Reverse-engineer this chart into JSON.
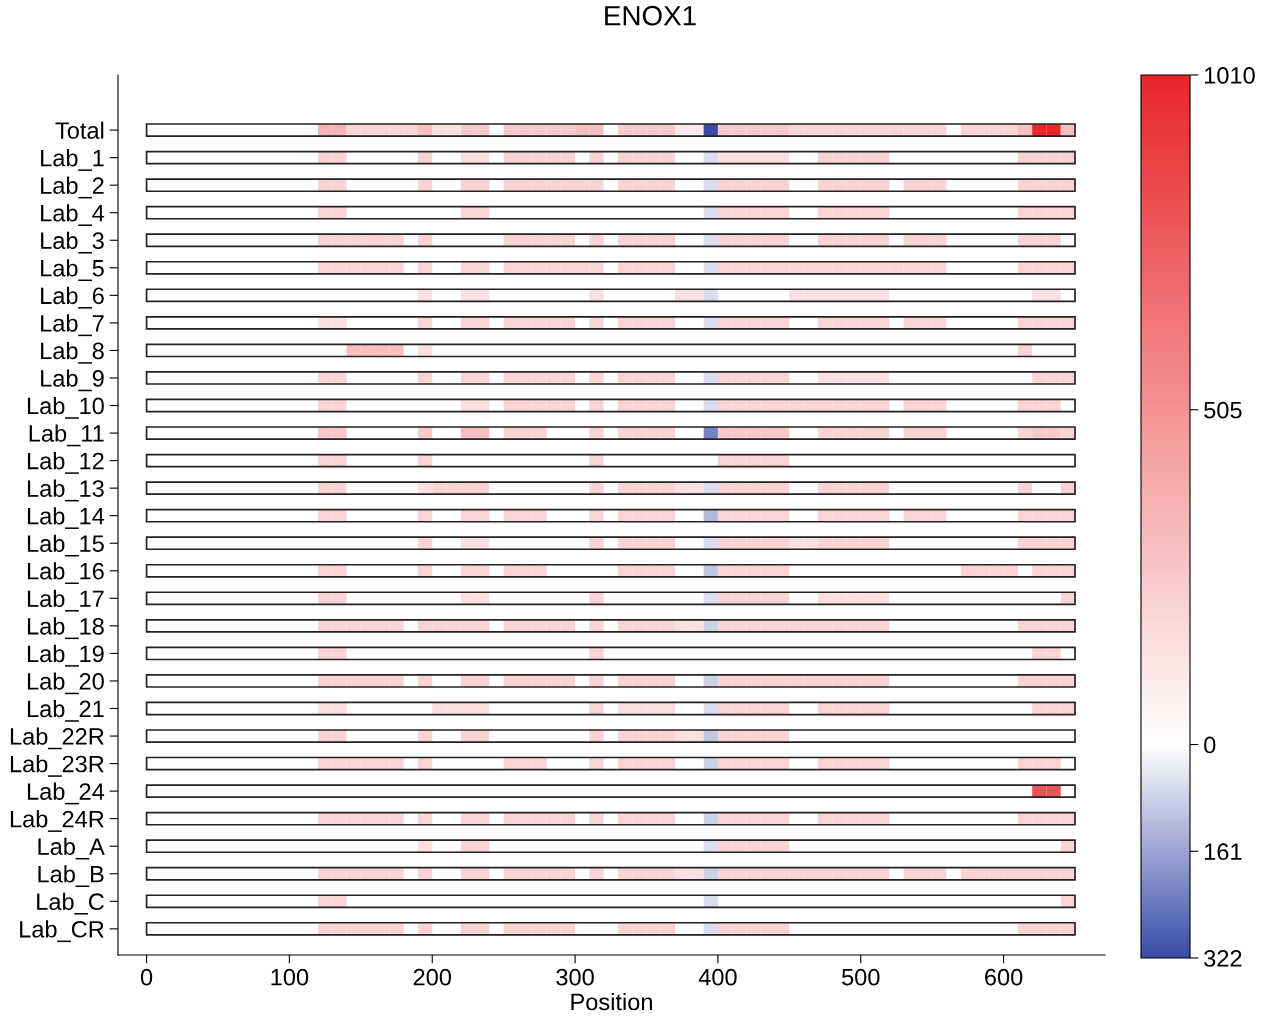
{
  "chart_data": {
    "type": "heatmap",
    "title": "ENOX1",
    "xlabel": "Position",
    "x": [
      125,
      135,
      145,
      155,
      165,
      175,
      185,
      195,
      205,
      215,
      225,
      235,
      245,
      255,
      265,
      275,
      285,
      295,
      305,
      315,
      325,
      335,
      345,
      355,
      365,
      375,
      385,
      395,
      405,
      415,
      425,
      435,
      445,
      455,
      465,
      475,
      485,
      495,
      505,
      515,
      525,
      535,
      545,
      555,
      565,
      575,
      585,
      595,
      605,
      615,
      625,
      635,
      645
    ],
    "xlim": [
      -20,
      671
    ],
    "xticks": [
      0,
      100,
      200,
      300,
      400,
      500,
      600
    ],
    "y_categories": [
      "Total",
      "Lab_1",
      "Lab_2",
      "Lab_4",
      "Lab_3",
      "Lab_5",
      "Lab_6",
      "Lab_7",
      "Lab_8",
      "Lab_9",
      "Lab_10",
      "Lab_11",
      "Lab_12",
      "Lab_13",
      "Lab_14",
      "Lab_15",
      "Lab_16",
      "Lab_17",
      "Lab_18",
      "Lab_19",
      "Lab_20",
      "Lab_21",
      "Lab_22R",
      "Lab_23R",
      "Lab_24",
      "Lab_24R",
      "Lab_A",
      "Lab_B",
      "Lab_C",
      "Lab_CR"
    ],
    "colors": [
      "#3a4ca8",
      "#ffffff",
      "#e8262a"
    ],
    "clim": [
      -322,
      1010
    ],
    "cticks": [
      {
        "value": 1010,
        "label": "1010"
      },
      {
        "value": 505,
        "label": "505"
      },
      {
        "value": 0,
        "label": "0"
      },
      {
        "value": -161,
        "label": "161"
      },
      {
        "value": -322,
        "label": "322"
      }
    ],
    "cells": [
      [
        350,
        350,
        200,
        200,
        200,
        200,
        200,
        300,
        150,
        150,
        250,
        250,
        null,
        250,
        250,
        250,
        250,
        250,
        300,
        300,
        null,
        250,
        250,
        250,
        250,
        100,
        100,
        -322,
        250,
        250,
        250,
        250,
        250,
        200,
        200,
        200,
        200,
        200,
        200,
        200,
        200,
        200,
        200,
        200,
        null,
        200,
        200,
        200,
        200,
        300,
        1000,
        1000,
        300
      ],
      [
        200,
        200,
        null,
        null,
        null,
        null,
        null,
        200,
        null,
        null,
        150,
        150,
        null,
        200,
        200,
        200,
        200,
        200,
        null,
        200,
        null,
        200,
        200,
        200,
        200,
        null,
        null,
        -60,
        150,
        150,
        150,
        150,
        150,
        null,
        null,
        200,
        200,
        200,
        200,
        200,
        null,
        null,
        null,
        null,
        null,
        null,
        null,
        null,
        null,
        200,
        200,
        200,
        200
      ],
      [
        200,
        200,
        null,
        null,
        null,
        null,
        null,
        200,
        null,
        null,
        200,
        200,
        null,
        200,
        200,
        200,
        200,
        200,
        200,
        200,
        null,
        200,
        200,
        200,
        200,
        null,
        null,
        -60,
        200,
        200,
        200,
        200,
        200,
        null,
        null,
        200,
        200,
        200,
        200,
        200,
        null,
        200,
        200,
        200,
        null,
        null,
        null,
        null,
        null,
        200,
        200,
        200,
        200
      ],
      [
        200,
        200,
        null,
        null,
        null,
        null,
        null,
        null,
        null,
        null,
        200,
        200,
        null,
        null,
        null,
        null,
        null,
        null,
        null,
        null,
        null,
        null,
        null,
        null,
        null,
        null,
        null,
        -60,
        200,
        200,
        200,
        200,
        200,
        null,
        null,
        200,
        200,
        200,
        200,
        200,
        null,
        null,
        null,
        null,
        null,
        null,
        null,
        null,
        null,
        200,
        200,
        200,
        200
      ],
      [
        200,
        200,
        200,
        200,
        200,
        200,
        null,
        200,
        null,
        null,
        null,
        null,
        null,
        200,
        200,
        200,
        200,
        200,
        null,
        200,
        null,
        200,
        200,
        200,
        200,
        null,
        null,
        -60,
        200,
        200,
        200,
        200,
        200,
        null,
        null,
        200,
        200,
        200,
        200,
        200,
        null,
        200,
        200,
        200,
        null,
        null,
        null,
        null,
        null,
        200,
        200,
        200,
        null
      ],
      [
        200,
        200,
        200,
        200,
        200,
        200,
        null,
        200,
        null,
        null,
        200,
        200,
        null,
        200,
        200,
        200,
        200,
        200,
        200,
        200,
        null,
        200,
        200,
        200,
        200,
        null,
        null,
        -60,
        200,
        200,
        200,
        200,
        200,
        200,
        200,
        200,
        200,
        200,
        200,
        200,
        200,
        200,
        200,
        200,
        null,
        null,
        null,
        null,
        null,
        200,
        200,
        200,
        200
      ],
      [
        null,
        null,
        null,
        null,
        null,
        null,
        null,
        150,
        null,
        null,
        150,
        150,
        null,
        null,
        null,
        null,
        null,
        null,
        null,
        150,
        null,
        null,
        null,
        null,
        null,
        150,
        150,
        -60,
        null,
        null,
        null,
        null,
        null,
        150,
        150,
        150,
        150,
        150,
        150,
        150,
        null,
        null,
        null,
        null,
        null,
        null,
        null,
        null,
        null,
        null,
        150,
        150,
        null
      ],
      [
        150,
        150,
        null,
        null,
        null,
        null,
        null,
        200,
        null,
        null,
        200,
        200,
        null,
        200,
        200,
        200,
        200,
        200,
        null,
        200,
        null,
        200,
        200,
        200,
        200,
        null,
        null,
        -60,
        200,
        200,
        200,
        200,
        200,
        null,
        null,
        200,
        200,
        200,
        200,
        200,
        null,
        200,
        200,
        200,
        null,
        null,
        null,
        null,
        null,
        200,
        200,
        200,
        200
      ],
      [
        null,
        null,
        300,
        300,
        300,
        300,
        null,
        150,
        null,
        null,
        null,
        null,
        null,
        null,
        null,
        null,
        null,
        null,
        null,
        null,
        null,
        null,
        null,
        null,
        null,
        null,
        null,
        null,
        null,
        null,
        null,
        null,
        null,
        null,
        null,
        null,
        null,
        null,
        null,
        null,
        null,
        null,
        null,
        null,
        null,
        null,
        null,
        null,
        null,
        200,
        null,
        null,
        null
      ],
      [
        200,
        200,
        null,
        null,
        null,
        null,
        null,
        200,
        null,
        null,
        200,
        200,
        null,
        200,
        200,
        200,
        200,
        200,
        null,
        200,
        null,
        200,
        200,
        200,
        200,
        null,
        null,
        -60,
        200,
        200,
        200,
        200,
        200,
        null,
        null,
        150,
        150,
        150,
        150,
        150,
        null,
        null,
        null,
        null,
        null,
        null,
        null,
        null,
        null,
        null,
        200,
        200,
        200
      ],
      [
        200,
        200,
        null,
        null,
        null,
        null,
        null,
        null,
        null,
        null,
        150,
        150,
        null,
        200,
        200,
        200,
        200,
        200,
        null,
        200,
        null,
        200,
        200,
        200,
        200,
        null,
        null,
        -60,
        200,
        200,
        200,
        200,
        200,
        200,
        200,
        200,
        200,
        200,
        200,
        200,
        null,
        200,
        200,
        200,
        null,
        null,
        null,
        null,
        null,
        200,
        200,
        200,
        null
      ],
      [
        250,
        250,
        null,
        null,
        null,
        null,
        null,
        250,
        null,
        null,
        300,
        300,
        null,
        200,
        200,
        200,
        null,
        null,
        null,
        200,
        null,
        200,
        200,
        200,
        200,
        null,
        null,
        -220,
        250,
        250,
        250,
        250,
        250,
        null,
        null,
        200,
        200,
        200,
        200,
        200,
        null,
        200,
        200,
        200,
        null,
        null,
        null,
        null,
        null,
        200,
        250,
        250,
        200
      ],
      [
        200,
        200,
        null,
        null,
        null,
        null,
        null,
        200,
        null,
        null,
        null,
        null,
        null,
        null,
        null,
        null,
        null,
        null,
        null,
        200,
        null,
        null,
        null,
        null,
        null,
        null,
        null,
        null,
        200,
        200,
        200,
        200,
        200,
        null,
        null,
        null,
        null,
        null,
        null,
        null,
        null,
        null,
        null,
        null,
        null,
        null,
        null,
        null,
        null,
        null,
        null,
        null,
        null
      ],
      [
        200,
        200,
        null,
        null,
        null,
        null,
        null,
        150,
        200,
        200,
        200,
        200,
        null,
        null,
        null,
        null,
        null,
        null,
        null,
        200,
        null,
        200,
        200,
        200,
        200,
        150,
        150,
        -60,
        200,
        200,
        200,
        200,
        200,
        null,
        null,
        200,
        200,
        200,
        200,
        200,
        null,
        null,
        null,
        null,
        null,
        null,
        null,
        null,
        null,
        200,
        null,
        null,
        200
      ],
      [
        200,
        200,
        null,
        null,
        null,
        null,
        null,
        200,
        null,
        null,
        200,
        200,
        null,
        200,
        200,
        200,
        null,
        null,
        null,
        200,
        null,
        200,
        200,
        200,
        200,
        null,
        null,
        -120,
        200,
        200,
        200,
        200,
        200,
        null,
        null,
        200,
        200,
        200,
        200,
        200,
        null,
        200,
        200,
        200,
        null,
        null,
        null,
        null,
        null,
        200,
        200,
        200,
        200
      ],
      [
        null,
        null,
        null,
        null,
        null,
        null,
        null,
        200,
        null,
        null,
        150,
        150,
        null,
        null,
        null,
        null,
        null,
        null,
        null,
        200,
        null,
        200,
        200,
        200,
        200,
        null,
        null,
        -60,
        200,
        200,
        200,
        200,
        200,
        150,
        150,
        200,
        200,
        200,
        200,
        200,
        null,
        null,
        null,
        null,
        null,
        null,
        null,
        null,
        null,
        200,
        200,
        200,
        200
      ],
      [
        200,
        200,
        null,
        null,
        null,
        null,
        null,
        200,
        null,
        null,
        200,
        200,
        null,
        200,
        200,
        200,
        null,
        null,
        null,
        null,
        null,
        200,
        200,
        200,
        200,
        null,
        null,
        -100,
        200,
        200,
        200,
        200,
        200,
        null,
        null,
        null,
        null,
        null,
        null,
        null,
        null,
        null,
        null,
        null,
        null,
        200,
        200,
        200,
        200,
        null,
        200,
        200,
        200
      ],
      [
        200,
        200,
        null,
        null,
        null,
        null,
        null,
        null,
        null,
        null,
        150,
        150,
        null,
        null,
        null,
        null,
        null,
        null,
        null,
        200,
        null,
        null,
        null,
        null,
        null,
        null,
        null,
        -60,
        200,
        200,
        200,
        200,
        200,
        null,
        null,
        150,
        150,
        150,
        150,
        150,
        null,
        null,
        null,
        null,
        null,
        null,
        null,
        null,
        null,
        null,
        null,
        null,
        200
      ],
      [
        200,
        200,
        200,
        200,
        200,
        200,
        null,
        200,
        200,
        200,
        200,
        200,
        null,
        200,
        200,
        200,
        200,
        200,
        null,
        200,
        null,
        200,
        200,
        200,
        200,
        150,
        150,
        -80,
        200,
        200,
        200,
        200,
        200,
        200,
        200,
        200,
        200,
        200,
        200,
        200,
        null,
        null,
        null,
        null,
        null,
        null,
        null,
        null,
        null,
        200,
        200,
        200,
        200
      ],
      [
        200,
        200,
        null,
        null,
        null,
        null,
        null,
        null,
        null,
        null,
        null,
        null,
        null,
        null,
        null,
        null,
        null,
        null,
        null,
        200,
        null,
        null,
        null,
        null,
        null,
        null,
        null,
        null,
        null,
        null,
        null,
        null,
        null,
        null,
        null,
        null,
        null,
        null,
        null,
        null,
        null,
        null,
        null,
        null,
        null,
        null,
        null,
        null,
        null,
        null,
        200,
        200,
        null
      ],
      [
        200,
        200,
        200,
        200,
        200,
        200,
        null,
        200,
        null,
        null,
        200,
        200,
        null,
        200,
        200,
        200,
        200,
        200,
        null,
        200,
        null,
        200,
        200,
        200,
        200,
        null,
        null,
        -80,
        200,
        200,
        200,
        200,
        200,
        200,
        200,
        200,
        200,
        200,
        200,
        200,
        null,
        null,
        null,
        null,
        null,
        null,
        null,
        null,
        null,
        200,
        200,
        200,
        200
      ],
      [
        150,
        150,
        null,
        null,
        null,
        null,
        null,
        null,
        150,
        150,
        150,
        150,
        null,
        null,
        null,
        null,
        null,
        null,
        null,
        200,
        null,
        150,
        150,
        150,
        150,
        null,
        null,
        -60,
        200,
        200,
        200,
        200,
        200,
        null,
        null,
        200,
        200,
        200,
        200,
        200,
        null,
        null,
        null,
        null,
        null,
        null,
        null,
        null,
        null,
        null,
        200,
        200,
        200
      ],
      [
        200,
        200,
        null,
        null,
        null,
        null,
        null,
        200,
        null,
        null,
        200,
        200,
        null,
        null,
        null,
        null,
        null,
        null,
        null,
        200,
        null,
        200,
        200,
        200,
        200,
        150,
        150,
        -100,
        200,
        200,
        200,
        200,
        200,
        null,
        null,
        null,
        null,
        null,
        null,
        null,
        null,
        null,
        null,
        null,
        null,
        null,
        null,
        null,
        null,
        null,
        null,
        null,
        null
      ],
      [
        200,
        200,
        200,
        200,
        200,
        200,
        null,
        200,
        null,
        null,
        null,
        null,
        null,
        200,
        200,
        200,
        null,
        null,
        null,
        200,
        null,
        200,
        200,
        200,
        200,
        null,
        null,
        -80,
        200,
        200,
        200,
        200,
        200,
        null,
        null,
        200,
        200,
        200,
        200,
        200,
        null,
        null,
        null,
        null,
        null,
        null,
        null,
        null,
        null,
        200,
        200,
        200,
        null
      ],
      [
        null,
        null,
        null,
        null,
        null,
        null,
        null,
        null,
        null,
        null,
        null,
        null,
        null,
        null,
        null,
        null,
        null,
        null,
        null,
        null,
        null,
        null,
        null,
        null,
        null,
        null,
        null,
        null,
        null,
        null,
        null,
        null,
        null,
        null,
        null,
        null,
        null,
        null,
        null,
        null,
        null,
        null,
        null,
        null,
        null,
        null,
        null,
        null,
        null,
        null,
        800,
        800,
        null
      ],
      [
        200,
        200,
        200,
        200,
        200,
        200,
        null,
        200,
        null,
        null,
        200,
        200,
        null,
        200,
        200,
        200,
        200,
        200,
        null,
        200,
        null,
        200,
        200,
        200,
        200,
        null,
        null,
        -80,
        200,
        200,
        200,
        200,
        200,
        null,
        null,
        200,
        200,
        200,
        200,
        200,
        null,
        null,
        null,
        null,
        null,
        null,
        null,
        null,
        null,
        200,
        200,
        200,
        200
      ],
      [
        null,
        null,
        null,
        null,
        null,
        null,
        null,
        150,
        null,
        null,
        200,
        200,
        null,
        null,
        null,
        null,
        null,
        null,
        null,
        null,
        null,
        null,
        null,
        null,
        null,
        null,
        null,
        -60,
        200,
        200,
        200,
        200,
        200,
        null,
        null,
        null,
        null,
        null,
        null,
        null,
        null,
        null,
        null,
        null,
        null,
        null,
        null,
        null,
        null,
        null,
        null,
        null,
        200
      ],
      [
        200,
        200,
        200,
        200,
        200,
        200,
        null,
        200,
        null,
        null,
        200,
        200,
        null,
        200,
        200,
        200,
        200,
        200,
        null,
        200,
        null,
        200,
        200,
        200,
        200,
        150,
        150,
        -80,
        200,
        200,
        200,
        200,
        200,
        200,
        200,
        200,
        200,
        200,
        200,
        200,
        null,
        200,
        200,
        200,
        null,
        200,
        200,
        200,
        200,
        200,
        200,
        200,
        200
      ],
      [
        200,
        200,
        null,
        null,
        null,
        null,
        null,
        null,
        null,
        null,
        null,
        null,
        null,
        null,
        null,
        null,
        null,
        null,
        null,
        null,
        null,
        null,
        null,
        null,
        null,
        null,
        null,
        -60,
        null,
        null,
        null,
        null,
        null,
        null,
        null,
        null,
        null,
        null,
        null,
        null,
        null,
        null,
        null,
        null,
        null,
        null,
        null,
        null,
        null,
        null,
        null,
        null,
        200
      ],
      [
        200,
        200,
        200,
        200,
        200,
        200,
        null,
        200,
        null,
        null,
        200,
        200,
        null,
        200,
        200,
        200,
        200,
        200,
        null,
        null,
        null,
        200,
        200,
        200,
        200,
        null,
        null,
        -60,
        200,
        200,
        200,
        200,
        200,
        null,
        null,
        null,
        null,
        null,
        null,
        null,
        null,
        null,
        null,
        null,
        null,
        null,
        null,
        null,
        null,
        200,
        200,
        200,
        200
      ]
    ]
  }
}
